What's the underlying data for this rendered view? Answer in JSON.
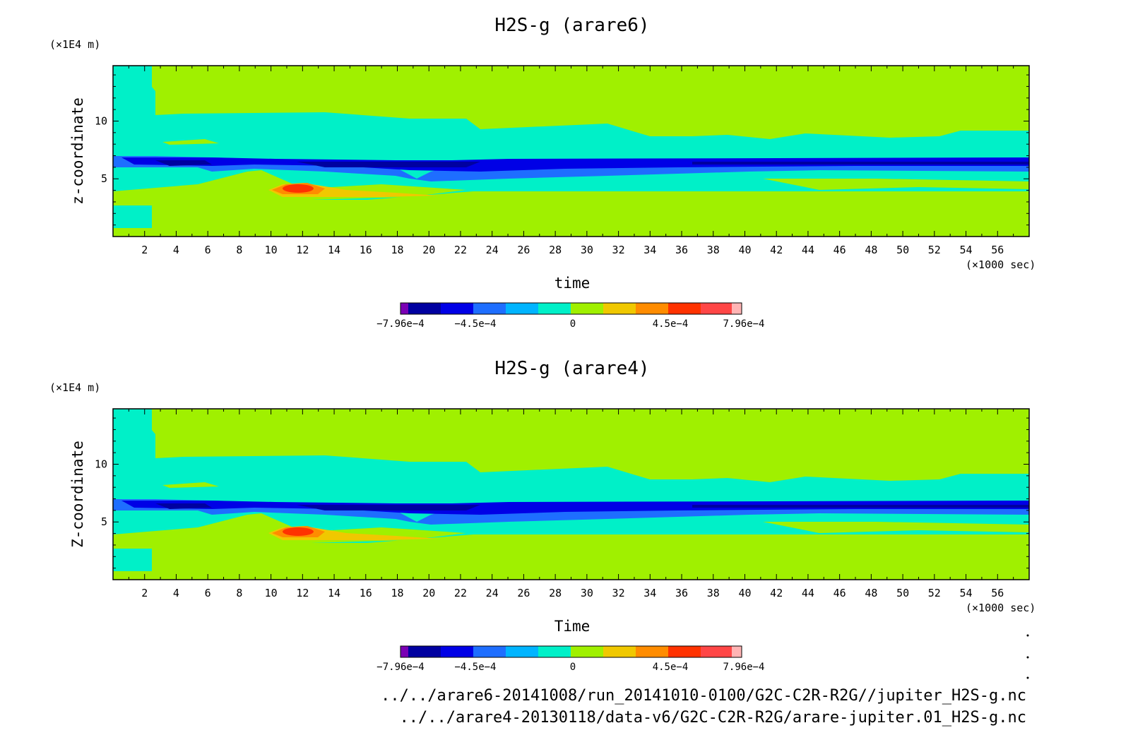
{
  "chart_data": [
    {
      "type": "heatmap",
      "title": "H2S-g (arare6)",
      "xlabel": "time",
      "ylabel": "z-coordinate",
      "x_unit": "(×1000 sec)",
      "y_unit": "(×1E4 m)",
      "xlim": [
        0,
        58
      ],
      "ylim": [
        0,
        14.8
      ],
      "x_ticks": [
        "2",
        "4",
        "6",
        "8",
        "10",
        "12",
        "14",
        "16",
        "18",
        "20",
        "22",
        "24",
        "26",
        "28",
        "30",
        "32",
        "34",
        "36",
        "38",
        "40",
        "42",
        "44",
        "46",
        "48",
        "50",
        "52",
        "54",
        "56"
      ],
      "y_ticks": [
        "5",
        "10"
      ],
      "colorbar": {
        "min": -0.000796,
        "max": 0.000796,
        "labels": [
          "−7.96e−4",
          "−4.5e−4",
          "0",
          "4.5e−4",
          "7.96e−4"
        ]
      }
    },
    {
      "type": "heatmap",
      "title": "H2S-g (arare4)",
      "xlabel": "Time",
      "ylabel": "Z-coordinate",
      "x_unit": "(×1000 sec)",
      "y_unit": "(×1E4 m)",
      "xlim": [
        0,
        58
      ],
      "ylim": [
        0,
        14.8
      ],
      "x_ticks": [
        "2",
        "4",
        "6",
        "8",
        "10",
        "12",
        "14",
        "16",
        "18",
        "20",
        "22",
        "24",
        "26",
        "28",
        "30",
        "32",
        "34",
        "36",
        "38",
        "40",
        "42",
        "44",
        "46",
        "48",
        "50",
        "52",
        "54",
        "56"
      ],
      "y_ticks": [
        "5",
        "10"
      ],
      "colorbar": {
        "min": -0.000796,
        "max": 0.000796,
        "labels": [
          "−7.96e−4",
          "−4.5e−4",
          "0",
          "4.5e−4",
          "7.96e−4"
        ]
      }
    }
  ],
  "colors": {
    "levels": [
      "#7a00b4",
      "#0000a0",
      "#0000e6",
      "#1e6eff",
      "#00b4ff",
      "#00f0c8",
      "#a0f000",
      "#f0c800",
      "#ff8c00",
      "#ff3200",
      "#ff4646",
      "#ffb4b4"
    ]
  },
  "files": {
    "line1": "../../arare6-20141008/run_20141010-0100/G2C-C2R-R2G//jupiter_H2S-g.nc",
    "line2": "../../arare4-20130118/data-v6/G2C-C2R-R2G/arare-jupiter.01_H2S-g.nc"
  }
}
